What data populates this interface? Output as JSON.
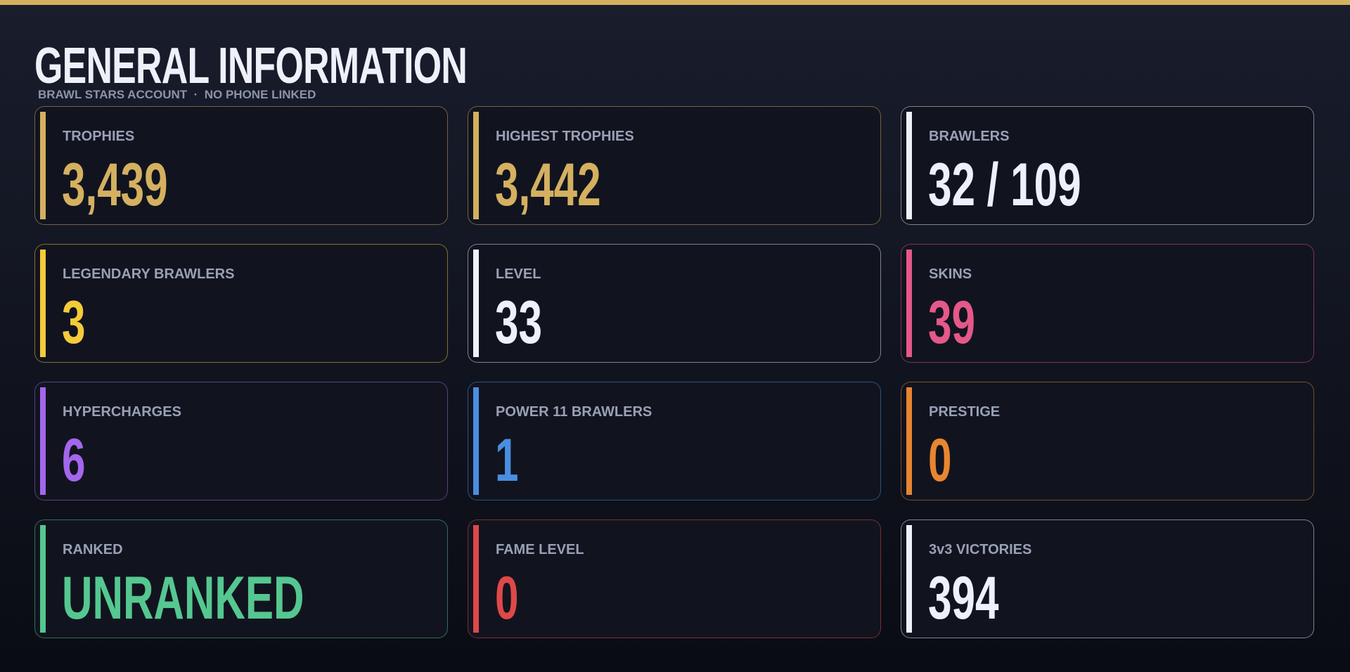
{
  "header": {
    "title": "GENERAL INFORMATION",
    "subtitle": "BRAWL STARS ACCOUNT  ·  NO PHONE LINKED"
  },
  "cards": [
    {
      "label": "TROPHIES",
      "value": "3,439",
      "color": "#d4b060"
    },
    {
      "label": "HIGHEST TROPHIES",
      "value": "3,442",
      "color": "#d4b060"
    },
    {
      "label": "BRAWLERS",
      "value": "32 / 109",
      "color": "#eef0fa"
    },
    {
      "label": "LEGENDARY BRAWLERS",
      "value": "3",
      "color": "#f5cb3a"
    },
    {
      "label": "LEVEL",
      "value": "33",
      "color": "#eef0fa"
    },
    {
      "label": "SKINS",
      "value": "39",
      "color": "#e5588a"
    },
    {
      "label": "HYPERCHARGES",
      "value": "6",
      "color": "#a466ec"
    },
    {
      "label": "POWER 11 BRAWLERS",
      "value": "1",
      "color": "#4a8ee0"
    },
    {
      "label": "PRESTIGE",
      "value": "0",
      "color": "#e88530"
    },
    {
      "label": "RANKED",
      "value": "UNRANKED",
      "color": "#55c790"
    },
    {
      "label": "FAME LEVEL",
      "value": "0",
      "color": "#e04848"
    },
    {
      "label": "3v3 VICTORIES",
      "value": "394",
      "color": "#eef0fa"
    }
  ]
}
